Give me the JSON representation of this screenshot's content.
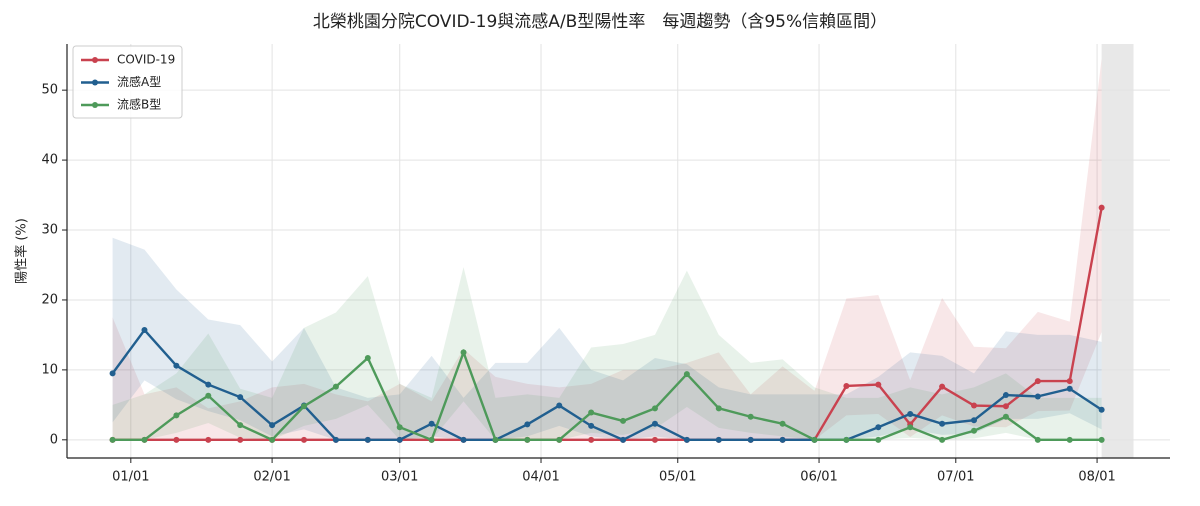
{
  "chart_data": {
    "type": "line",
    "title": "北榮桃園分院COVID-19與流感A/B型陽性率　每週趨勢（含95%信賴區間）",
    "y_label": "陽性率 (%)",
    "x": [
      "12/28",
      "01/04",
      "01/11",
      "01/18",
      "01/25",
      "02/01",
      "02/08",
      "02/15",
      "02/22",
      "03/01",
      "03/08",
      "03/15",
      "03/22",
      "03/29",
      "04/05",
      "04/12",
      "04/19",
      "04/26",
      "05/03",
      "05/10",
      "05/17",
      "05/24",
      "05/31",
      "06/07",
      "06/14",
      "06/21",
      "06/28",
      "07/05",
      "07/12",
      "07/19",
      "07/26",
      "08/02"
    ],
    "xlim": [
      "12/18",
      "08/17"
    ],
    "xticks": [
      "01/01",
      "02/01",
      "03/01",
      "04/01",
      "05/01",
      "06/01",
      "07/01",
      "08/01"
    ],
    "ylim": [
      -2.6,
      56.6
    ],
    "yticks": [
      0,
      10,
      20,
      30,
      40,
      50
    ],
    "grid": true,
    "legend": "upper-left",
    "shaded_span": [
      "08/02",
      "08/09"
    ],
    "shaded_color": "#d9d9d9",
    "series": [
      {
        "name": "COVID-19",
        "color": "#c9424f",
        "values": [
          0,
          0,
          0,
          0,
          0,
          0,
          0,
          0,
          0,
          0,
          0,
          0,
          0,
          0,
          0,
          0,
          0,
          0,
          0,
          0,
          0,
          0,
          0,
          7.7,
          7.9,
          2.2,
          7.6,
          4.9,
          4.8,
          8.4,
          8.4,
          33.2
        ],
        "lower": [
          0,
          0,
          0,
          0,
          0,
          0,
          0,
          0,
          0,
          0,
          0,
          0,
          0,
          0,
          0,
          0,
          0,
          0,
          0,
          0,
          0,
          0,
          0,
          3.5,
          3.7,
          0.4,
          3.5,
          1.9,
          1.8,
          4.1,
          4.2,
          15.4
        ],
        "upper": [
          17.5,
          6.5,
          7.5,
          4.5,
          5.5,
          7.5,
          8,
          6.5,
          5.5,
          8,
          5.5,
          13,
          9,
          8,
          7.5,
          8,
          10,
          10,
          11,
          12.5,
          6.5,
          10.5,
          7,
          20.2,
          20.7,
          8.5,
          20.3,
          13.3,
          13.1,
          18.3,
          16.9,
          54.5
        ]
      },
      {
        "name": "流感A型",
        "color": "#215f8f",
        "values": [
          9.5,
          15.7,
          10.6,
          7.9,
          6.1,
          2.1,
          4.9,
          0,
          0,
          0,
          2.3,
          0,
          0,
          2.2,
          4.9,
          2.0,
          0,
          2.3,
          0,
          0,
          0,
          0,
          0,
          0,
          1.8,
          3.7,
          2.3,
          2.8,
          6.4,
          6.2,
          7.3,
          4.3
        ],
        "lower": [
          2.5,
          8.5,
          5.8,
          4.1,
          2.8,
          0.5,
          1.5,
          0,
          0,
          0,
          0.5,
          0,
          0,
          0.5,
          2,
          0.5,
          0,
          0.5,
          0,
          0,
          0,
          0,
          0,
          0,
          0.5,
          1.5,
          0.7,
          0.9,
          3,
          3,
          3.8,
          1.5
        ],
        "upper": [
          28.9,
          27.2,
          21.5,
          17.2,
          16.4,
          11.2,
          16,
          7.5,
          6,
          6.5,
          12,
          6,
          11,
          11,
          16,
          10,
          8.5,
          11.7,
          10.8,
          7.5,
          6.5,
          6.5,
          6.5,
          6.5,
          9,
          12.5,
          12,
          9.5,
          15.5,
          15,
          15,
          14
        ]
      },
      {
        "name": "流感B型",
        "color": "#4e9a5a",
        "values": [
          0,
          0,
          3.5,
          6.3,
          2.1,
          0,
          4.8,
          7.6,
          11.7,
          1.8,
          0,
          12.5,
          0,
          0,
          0,
          3.9,
          2.7,
          4.5,
          9.4,
          4.5,
          3.3,
          2.3,
          0,
          0,
          0,
          1.8,
          0,
          1.3,
          3.3,
          0,
          0,
          0
        ],
        "lower": [
          0,
          0,
          1,
          2.4,
          0.3,
          0,
          2,
          3,
          5,
          0,
          0,
          5.5,
          0,
          0,
          0,
          1,
          0.7,
          1.6,
          4.7,
          1.7,
          1,
          0.5,
          0,
          0,
          0,
          0.3,
          0,
          0.2,
          1,
          0,
          0,
          0
        ],
        "upper": [
          5,
          6.5,
          9.5,
          15.2,
          7.3,
          6,
          16,
          18.2,
          23.4,
          8,
          6,
          24.7,
          6,
          6.5,
          6,
          13.2,
          13.7,
          15,
          24.2,
          15,
          11,
          11.5,
          7.5,
          6,
          6,
          7.5,
          6.5,
          7.5,
          9.5,
          6,
          6,
          6
        ]
      }
    ]
  }
}
